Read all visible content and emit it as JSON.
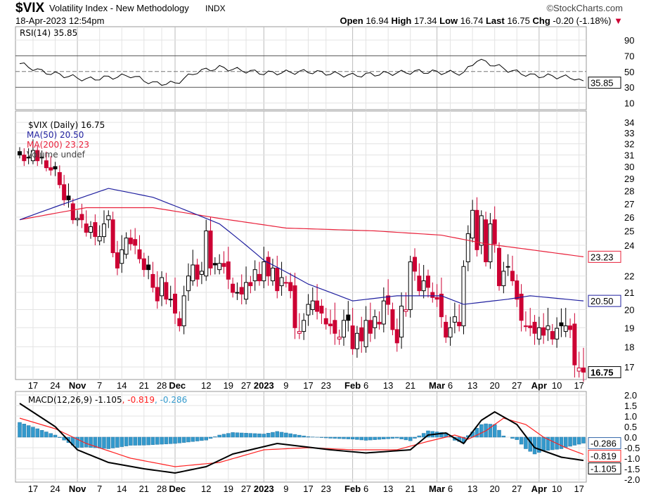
{
  "header": {
    "symbol": "$VIX",
    "name": "Volatility Index - New Methodology",
    "exchange": "INDX",
    "datetime": "18-Apr-2023 12:54pm",
    "brand": "©StockCharts.com",
    "open_label": "Open",
    "open": "16.94",
    "high_label": "High",
    "high": "17.34",
    "low_label": "Low",
    "low": "16.74",
    "last_label": "Last",
    "last": "16.75",
    "chg_label": "Chg",
    "chg": "-0.20 (-1.18%)",
    "down_arrow": "▼"
  },
  "colors": {
    "up": "#000000",
    "down": "#cc0033",
    "ma50": "#1f1f9f",
    "ma200": "#e8203a",
    "macd": "#000000",
    "signal": "#ff2020",
    "hist": "#3399cc"
  },
  "chart_data": [
    {
      "type": "candlestick",
      "title": "$VIX (Daily) 16.75",
      "legend": [
        "$VIX (Daily) 16.75",
        "MA(50) 20.50",
        "MA(200) 23.23",
        "Volume undef"
      ],
      "yscale": "log",
      "ylim": [
        16.5,
        35
      ],
      "yticks": [
        17,
        18,
        19,
        20,
        21,
        22,
        24,
        25,
        26,
        27,
        28,
        29,
        30,
        31,
        32,
        33,
        34
      ],
      "last_labels": {
        "ma200": "23.23",
        "ma50": "20.50",
        "close": "16.75"
      },
      "close": [
        31,
        30.5,
        30.8,
        31.4,
        30.5,
        30.8,
        29.9,
        29.7,
        29.8,
        28.5,
        27.3,
        27.3,
        25.8,
        25.9,
        25.8,
        24.9,
        25.3,
        24.6,
        24.6,
        25.5,
        26.1,
        23.5,
        22.5,
        23.7,
        24.5,
        24.1,
        24.0,
        23.1,
        22.4,
        22.4,
        21.3,
        20.5,
        21.9,
        20.6,
        20.6,
        19.8,
        19.1,
        20.8,
        22.0,
        22.7,
        21.8,
        22.3,
        25.0,
        22.5,
        22.7,
        22.8,
        22.6,
        21.8,
        21.0,
        21.0,
        20.9,
        21.6,
        21.4,
        22.4,
        21.7,
        22.9,
        22.0,
        22.5,
        21.1,
        21.9,
        21.6,
        21.1,
        19.0,
        18.8,
        19.4,
        20.3,
        20.5,
        19.9,
        19.8,
        19.2,
        19.1,
        18.7,
        18.5,
        19.4,
        19.4,
        17.9,
        18.7,
        18.3,
        19.4,
        18.7,
        19.6,
        19.2,
        20.5,
        20.3,
        18.9,
        18.2,
        20.2,
        20.0,
        22.9,
        22.3,
        21.1,
        21.7,
        21.3,
        20.7,
        20.6,
        19.6,
        18.5,
        19.0,
        19.6,
        19.1,
        22.6,
        24.8,
        26.5,
        23.7,
        26.1,
        22.9,
        25.5,
        24.1,
        21.4,
        22.3,
        22.6,
        21.7,
        20.6,
        19.4,
        19.1,
        19.0,
        18.7,
        19.0,
        18.6,
        19.1,
        18.4,
        18.97,
        19.1,
        19.1,
        18.9,
        17.1,
        16.95,
        16.75
      ],
      "ma50": {
        "index": [
          0,
          20,
          30,
          45,
          55,
          65,
          75,
          85,
          95,
          100,
          110,
          115,
          127
        ],
        "values": [
          25.8,
          28.2,
          27.5,
          25.5,
          23,
          21.5,
          20.5,
          20.8,
          20.8,
          20.3,
          20.6,
          20.8,
          20.5
        ]
      },
      "ma200": {
        "index": [
          0,
          15,
          30,
          45,
          60,
          80,
          95,
          105,
          127
        ],
        "values": [
          25.8,
          26.7,
          26.7,
          25.9,
          25.2,
          25.0,
          24.7,
          24.1,
          23.23
        ]
      }
    },
    {
      "type": "line",
      "title": "RSI(14) 35.85",
      "ylim": [
        0,
        100
      ],
      "yticks": [
        90,
        70,
        50,
        30,
        10
      ],
      "last_label": "35.85",
      "index": [
        0,
        5,
        15,
        25,
        30,
        35,
        40,
        45,
        55,
        65,
        75,
        90,
        100,
        103,
        106,
        110,
        115,
        120,
        125,
        127
      ],
      "values": [
        60,
        50,
        40,
        45,
        35,
        35,
        50,
        55,
        48,
        50,
        45,
        50,
        48,
        65,
        60,
        52,
        45,
        44,
        42,
        35.85
      ]
    },
    {
      "type": "line",
      "title": "MACD(12,26,9)",
      "legend": [
        "MACD(12,26,9) -1.105",
        ", -0.819",
        ", -0.286"
      ],
      "ylim": [
        -2.2,
        2.2
      ],
      "yticks": [
        "2.0",
        "1.5",
        "1.0",
        "0.5",
        "0.0",
        "-0.5",
        "-1.0",
        "-1.5",
        "-2.0"
      ],
      "last_labels": {
        "hist": "-0.286",
        "signal": "-0.819",
        "macd": "-1.105"
      },
      "macd": {
        "index": [
          0,
          8,
          13,
          20,
          28,
          35,
          42,
          48,
          58,
          70,
          78,
          88,
          92,
          96,
          100,
          104,
          107,
          112,
          116,
          122,
          127
        ],
        "values": [
          1.6,
          0.5,
          -0.6,
          -1.2,
          -1.5,
          -1.7,
          -1.4,
          -0.8,
          -0.3,
          -0.6,
          -0.75,
          -0.6,
          0.1,
          0.2,
          -0.3,
          0.8,
          1.2,
          0.6,
          -0.5,
          -0.95,
          -1.105
        ]
      },
      "signal": {
        "index": [
          0,
          8,
          15,
          25,
          35,
          45,
          55,
          65,
          75,
          85,
          92,
          98,
          101,
          105,
          109,
          114,
          118,
          123,
          127
        ],
        "values": [
          0.9,
          0.4,
          -0.3,
          -1.0,
          -1.4,
          -1.2,
          -0.6,
          -0.5,
          -0.6,
          -0.6,
          -0.2,
          0.1,
          -0.1,
          0.3,
          0.9,
          0.6,
          0.0,
          -0.5,
          -0.819
        ]
      }
    }
  ],
  "xaxis": {
    "ticks": [
      {
        "i": 3,
        "label": "17"
      },
      {
        "i": 8,
        "label": "24"
      },
      {
        "i": 13,
        "label": "Nov",
        "bold": true
      },
      {
        "i": 18,
        "label": "7"
      },
      {
        "i": 23,
        "label": "14"
      },
      {
        "i": 28,
        "label": "21"
      },
      {
        "i": 32,
        "label": "28"
      },
      {
        "i": 35,
        "label": "Dec",
        "bold": true
      },
      {
        "i": 42,
        "label": "12"
      },
      {
        "i": 47,
        "label": "19"
      },
      {
        "i": 51,
        "label": "27"
      },
      {
        "i": 55,
        "label": "2023",
        "bold": true
      },
      {
        "i": 60,
        "label": "9"
      },
      {
        "i": 65,
        "label": "17"
      },
      {
        "i": 69,
        "label": "23"
      },
      {
        "i": 75,
        "label": "Feb",
        "bold": true
      },
      {
        "i": 78,
        "label": "6"
      },
      {
        "i": 83,
        "label": "13"
      },
      {
        "i": 88,
        "label": "21"
      },
      {
        "i": 94,
        "label": "Mar",
        "bold": true
      },
      {
        "i": 97,
        "label": "6"
      },
      {
        "i": 102,
        "label": "13"
      },
      {
        "i": 107,
        "label": "20"
      },
      {
        "i": 112,
        "label": "27"
      },
      {
        "i": 117,
        "label": "Apr",
        "bold": true
      },
      {
        "i": 121,
        "label": "10"
      },
      {
        "i": 126,
        "label": "17"
      }
    ]
  }
}
